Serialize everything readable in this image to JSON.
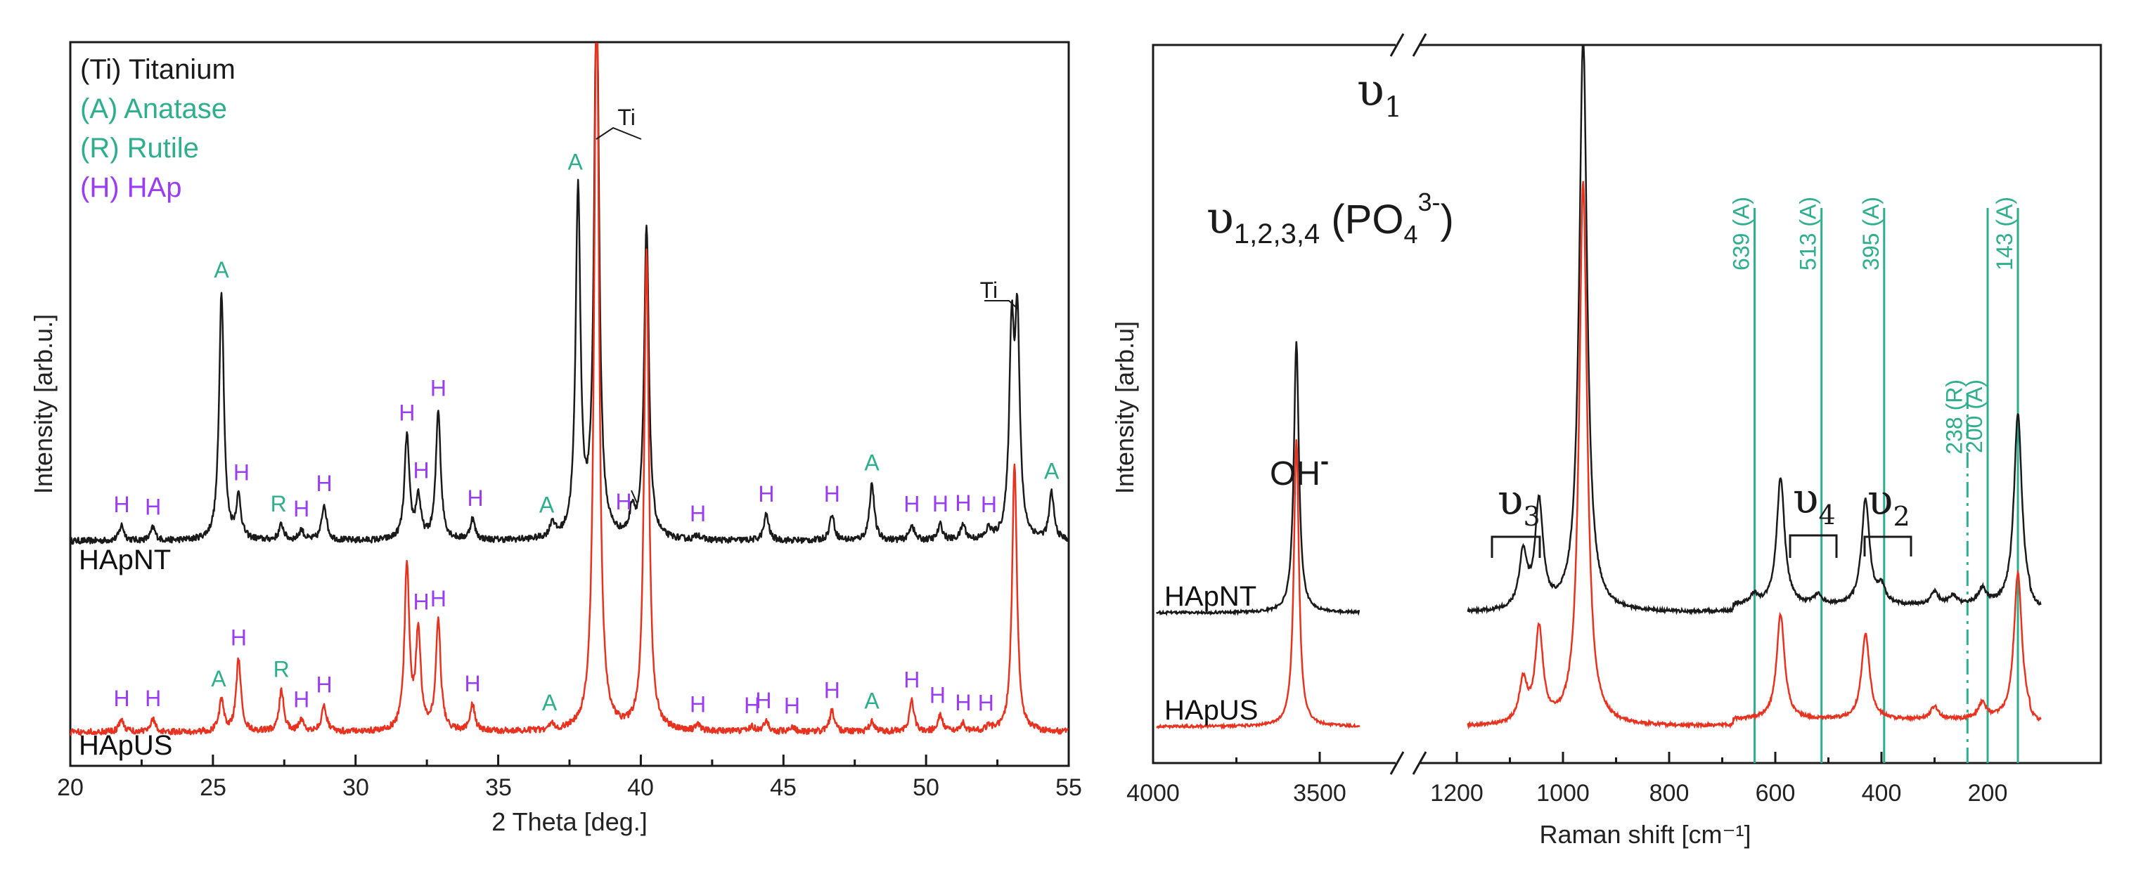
{
  "colors": {
    "black": "#1a1a1a",
    "red": "#e8321f",
    "green": "#2fae8e",
    "purple": "#9a3df2"
  },
  "chart_data": [
    {
      "type": "line",
      "title": "",
      "xlabel": "2 Theta [deg.]",
      "ylabel": "Intensity [arb.u.]",
      "xlim": [
        20,
        55
      ],
      "xticks": [
        "20",
        "25",
        "30",
        "35",
        "40",
        "45",
        "50",
        "55"
      ],
      "legend": [
        {
          "label": "(Ti) Titanium",
          "color": "black"
        },
        {
          "label": "(A) Anatase",
          "color": "green"
        },
        {
          "label": "(R) Rutile",
          "color": "green"
        },
        {
          "label": "(H) HAp",
          "color": "purple"
        }
      ],
      "series": [
        {
          "name": "HApNT",
          "color": "black",
          "baseline": 0.5,
          "peaks": [
            [
              21.8,
              0.03
            ],
            [
              22.9,
              0.025
            ],
            [
              25.3,
              0.48
            ],
            [
              25.9,
              0.08
            ],
            [
              27.4,
              0.03
            ],
            [
              28.1,
              0.02
            ],
            [
              28.9,
              0.07
            ],
            [
              31.8,
              0.2
            ],
            [
              32.2,
              0.08
            ],
            [
              32.9,
              0.25
            ],
            [
              34.1,
              0.04
            ],
            [
              36.9,
              0.03
            ],
            [
              37.8,
              0.67
            ],
            [
              38.45,
              1.1
            ],
            [
              39.7,
              0.05
            ],
            [
              40.2,
              0.6
            ],
            [
              42.0,
              0.01
            ],
            [
              44.4,
              0.05
            ],
            [
              46.7,
              0.05
            ],
            [
              48.1,
              0.11
            ],
            [
              49.5,
              0.03
            ],
            [
              50.5,
              0.03
            ],
            [
              51.3,
              0.03
            ],
            [
              52.2,
              0.02
            ],
            [
              53.0,
              0.38
            ],
            [
              53.2,
              0.4
            ],
            [
              54.4,
              0.09
            ]
          ]
        },
        {
          "name": "HApUS",
          "color": "red",
          "baseline": 0.0,
          "peaks": [
            [
              21.8,
              0.025
            ],
            [
              22.9,
              0.025
            ],
            [
              25.3,
              0.06
            ],
            [
              25.9,
              0.14
            ],
            [
              27.4,
              0.08
            ],
            [
              28.1,
              0.02
            ],
            [
              28.9,
              0.05
            ],
            [
              31.8,
              0.32
            ],
            [
              32.2,
              0.19
            ],
            [
              32.9,
              0.21
            ],
            [
              34.1,
              0.05
            ],
            [
              36.9,
              0.01
            ],
            [
              38.45,
              1.48
            ],
            [
              40.2,
              0.92
            ],
            [
              42.0,
              0.01
            ],
            [
              43.9,
              0.01
            ],
            [
              44.4,
              0.02
            ],
            [
              45.3,
              0.01
            ],
            [
              46.7,
              0.04
            ],
            [
              48.1,
              0.02
            ],
            [
              49.5,
              0.06
            ],
            [
              50.5,
              0.03
            ],
            [
              51.3,
              0.015
            ],
            [
              52.2,
              0.01
            ],
            [
              53.1,
              0.52
            ]
          ]
        }
      ],
      "annotations": [
        {
          "text": "A",
          "x": 25.3,
          "series": "HApNT",
          "color": "green"
        },
        {
          "text": "A",
          "x": 37.7,
          "series": "HApNT",
          "color": "green"
        },
        {
          "text": "A",
          "x": 48.1,
          "series": "HApNT",
          "color": "green"
        },
        {
          "text": "A",
          "x": 54.4,
          "series": "HApNT",
          "color": "green"
        },
        {
          "text": "A",
          "x": 36.7,
          "series": "HApNT",
          "color": "green"
        },
        {
          "text": "R",
          "x": 27.3,
          "series": "HApNT",
          "color": "green"
        },
        {
          "text": "H",
          "x": 21.8,
          "series": "HApNT",
          "color": "purple"
        },
        {
          "text": "H",
          "x": 22.9,
          "series": "HApNT",
          "color": "purple"
        },
        {
          "text": "H",
          "x": 26.0,
          "series": "HApNT",
          "color": "purple"
        },
        {
          "text": "H",
          "x": 28.1,
          "series": "HApNT",
          "color": "purple"
        },
        {
          "text": "H",
          "x": 28.9,
          "series": "HApNT",
          "color": "purple"
        },
        {
          "text": "H",
          "x": 31.8,
          "series": "HApNT",
          "color": "purple"
        },
        {
          "text": "H",
          "x": 32.3,
          "series": "HApNT",
          "color": "purple"
        },
        {
          "text": "H",
          "x": 32.9,
          "series": "HApNT",
          "color": "purple"
        },
        {
          "text": "H",
          "x": 34.2,
          "series": "HApNT",
          "color": "purple"
        },
        {
          "text": "H",
          "x": 39.4,
          "series": "HApNT",
          "color": "purple"
        },
        {
          "text": "H",
          "x": 42.0,
          "series": "HApNT",
          "color": "purple"
        },
        {
          "text": "H",
          "x": 44.4,
          "series": "HApNT",
          "color": "purple"
        },
        {
          "text": "H",
          "x": 46.7,
          "series": "HApNT",
          "color": "purple"
        },
        {
          "text": "H",
          "x": 49.5,
          "series": "HApNT",
          "color": "purple"
        },
        {
          "text": "H",
          "x": 50.5,
          "series": "HApNT",
          "color": "purple"
        },
        {
          "text": "H",
          "x": 51.3,
          "series": "HApNT",
          "color": "purple"
        },
        {
          "text": "H",
          "x": 52.2,
          "series": "HApNT",
          "color": "purple"
        },
        {
          "text": "Ti",
          "x": 39.5,
          "series": "HApNT",
          "color": "black"
        },
        {
          "text": "Ti",
          "x": 52.2,
          "series": "HApNT",
          "color": "black"
        },
        {
          "text": "A",
          "x": 25.2,
          "series": "HApUS",
          "color": "green"
        },
        {
          "text": "A",
          "x": 36.8,
          "series": "HApUS",
          "color": "green"
        },
        {
          "text": "A",
          "x": 48.1,
          "series": "HApUS",
          "color": "green"
        },
        {
          "text": "R",
          "x": 27.4,
          "series": "HApUS",
          "color": "green"
        },
        {
          "text": "H",
          "x": 21.8,
          "series": "HApUS",
          "color": "purple"
        },
        {
          "text": "H",
          "x": 22.9,
          "series": "HApUS",
          "color": "purple"
        },
        {
          "text": "H",
          "x": 25.9,
          "series": "HApUS",
          "color": "purple"
        },
        {
          "text": "H",
          "x": 28.1,
          "series": "HApUS",
          "color": "purple"
        },
        {
          "text": "H",
          "x": 28.9,
          "series": "HApUS",
          "color": "purple"
        },
        {
          "text": "H",
          "x": 32.3,
          "series": "HApUS",
          "color": "purple"
        },
        {
          "text": "H",
          "x": 32.9,
          "series": "HApUS",
          "color": "purple"
        },
        {
          "text": "H",
          "x": 34.1,
          "series": "HApUS",
          "color": "purple"
        },
        {
          "text": "H",
          "x": 42.0,
          "series": "HApUS",
          "color": "purple"
        },
        {
          "text": "H",
          "x": 43.9,
          "series": "HApUS",
          "color": "purple"
        },
        {
          "text": "H",
          "x": 44.3,
          "series": "HApUS",
          "color": "purple"
        },
        {
          "text": "H",
          "x": 45.3,
          "series": "HApUS",
          "color": "purple"
        },
        {
          "text": "H",
          "x": 46.7,
          "series": "HApUS",
          "color": "purple"
        },
        {
          "text": "H",
          "x": 49.5,
          "series": "HApUS",
          "color": "purple"
        },
        {
          "text": "H",
          "x": 50.4,
          "series": "HApUS",
          "color": "purple"
        },
        {
          "text": "H",
          "x": 51.3,
          "series": "HApUS",
          "color": "purple"
        },
        {
          "text": "H",
          "x": 52.1,
          "series": "HApUS",
          "color": "purple"
        }
      ]
    },
    {
      "type": "line",
      "title": "υ 1,2,3,4 (PO4 3-)",
      "xlabel": "Raman shift [cm⁻¹]",
      "ylabel": "Intensity [arb.u]",
      "xaxis_broken": true,
      "xticks": [
        "4000",
        "3500",
        "1200",
        "1000",
        "800",
        "600",
        "400",
        "200"
      ],
      "series": [
        {
          "name": "HApNT",
          "color": "black",
          "peaks": [
            [
              3570,
              0.85
            ],
            [
              1075,
              0.17
            ],
            [
              1045,
              0.33
            ],
            [
              962,
              1.8
            ],
            [
              640,
              0.03
            ],
            [
              590,
              0.4
            ],
            [
              520,
              0.03
            ],
            [
              430,
              0.33
            ],
            [
              400,
              0.05
            ],
            [
              300,
              0.04
            ],
            [
              265,
              0.03
            ],
            [
              210,
              0.05
            ],
            [
              143,
              0.6
            ]
          ]
        },
        {
          "name": "HApUS",
          "color": "red",
          "peaks": [
            [
              3570,
              0.9
            ],
            [
              1075,
              0.13
            ],
            [
              1045,
              0.29
            ],
            [
              962,
              1.7
            ],
            [
              590,
              0.33
            ],
            [
              430,
              0.27
            ],
            [
              300,
              0.04
            ],
            [
              210,
              0.05
            ],
            [
              143,
              0.46
            ]
          ]
        }
      ],
      "reference_lines": [
        {
          "x": 639,
          "label": "639 (A)",
          "style": "solid"
        },
        {
          "x": 513,
          "label": "513 (A)",
          "style": "solid"
        },
        {
          "x": 395,
          "label": "395 (A)",
          "style": "solid"
        },
        {
          "x": 238,
          "label": "238 (R)",
          "style": "dashdot"
        },
        {
          "x": 200,
          "label": "200 (A)",
          "style": "solid"
        },
        {
          "x": 143,
          "label": "143 (A)",
          "style": "solid"
        }
      ],
      "labels": {
        "oh": "OH",
        "oh_sup": "-",
        "v1": "υ",
        "v1_sub": "1",
        "v2": "υ",
        "v2_sub": "2",
        "v3": "υ",
        "v3_sub": "3",
        "v4": "υ",
        "v4_sub": "4",
        "title_v": "υ",
        "title_sub": "1,2,3,4",
        "title_po": " (PO",
        "title_po_sub": "4",
        "title_po_sup": "3-",
        "title_close": ")"
      }
    }
  ]
}
